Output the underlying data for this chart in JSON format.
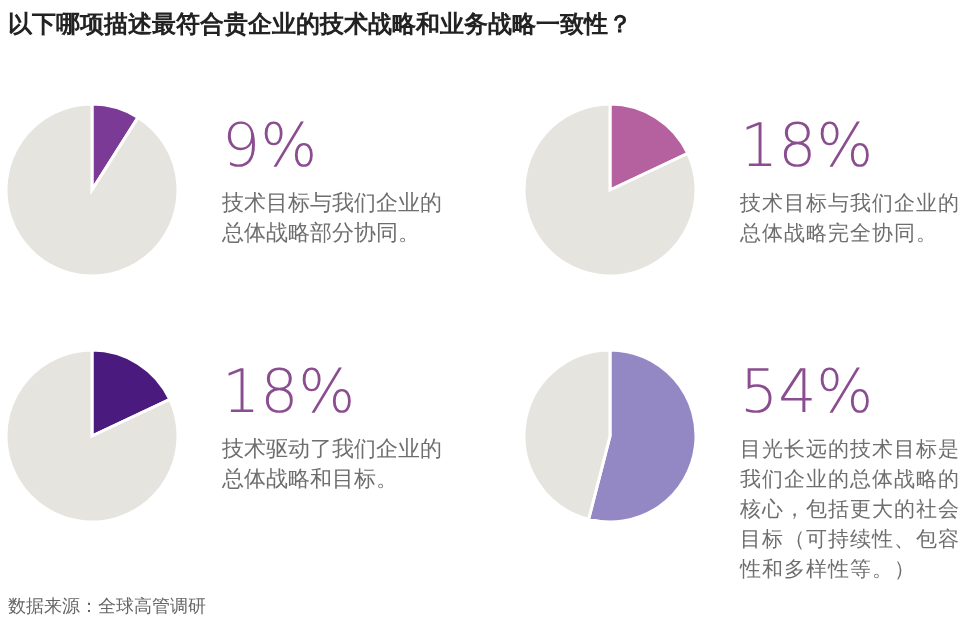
{
  "chart_data": [
    {
      "type": "other",
      "title": "以下哪项描述最符合贵企业的技术战略和业务战略一致性？",
      "annotations": [
        "数据来源：全球高管调研"
      ]
    },
    {
      "type": "pie",
      "title": "9%",
      "subtitle": "技术目标与我们企业的总体战略部分协同。",
      "categories": [
        null,
        null
      ],
      "values": [
        9,
        91
      ],
      "colors": [
        "#7b3a96",
        "#e6e4df"
      ]
    },
    {
      "type": "pie",
      "title": "18%",
      "subtitle": "技术目标与我们企业的总体战略完全协同。",
      "categories": [
        null,
        null
      ],
      "values": [
        18,
        82
      ],
      "colors": [
        "#b5609f",
        "#e6e4df"
      ]
    },
    {
      "type": "pie",
      "title": "18%",
      "subtitle": "技术驱动了我们企业的总体战略和目标。",
      "categories": [
        null,
        null
      ],
      "values": [
        18,
        82
      ],
      "colors": [
        "#4a1a7e",
        "#e6e4df"
      ]
    },
    {
      "type": "pie",
      "title": "54%",
      "subtitle": "目光长远的技术目标是我们企业的总体战略的核心，包括更大的社会目标（可持续性、包容性和多样性等。）",
      "categories": [
        null,
        null
      ],
      "values": [
        54,
        46
      ],
      "colors": [
        "#9388c4",
        "#e6e4df"
      ]
    }
  ]
}
